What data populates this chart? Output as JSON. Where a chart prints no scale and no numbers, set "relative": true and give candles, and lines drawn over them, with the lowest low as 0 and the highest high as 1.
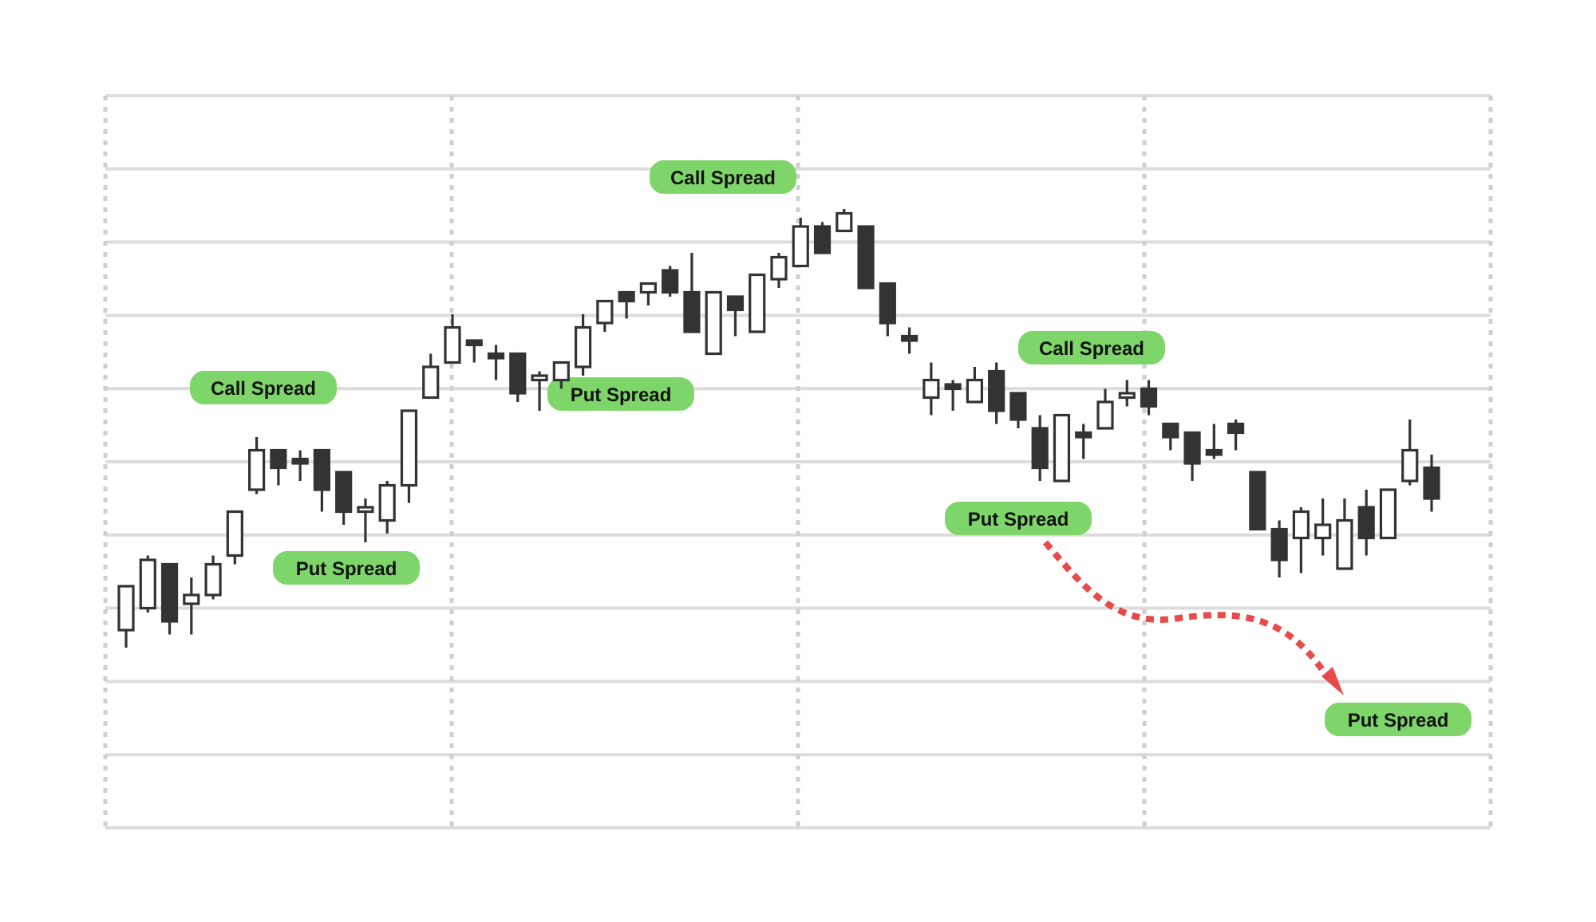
{
  "chart_data": {
    "type": "candlestick",
    "relative": true,
    "grid": true,
    "categories": [
      null,
      null,
      null,
      null,
      null,
      null,
      null,
      null,
      null,
      null,
      null,
      null,
      null,
      null,
      null,
      null,
      null,
      null,
      null,
      null,
      null,
      null,
      null,
      null,
      null,
      null,
      null,
      null,
      null,
      null,
      null,
      null,
      null,
      null,
      null,
      null,
      null,
      null,
      null,
      null,
      null,
      null,
      null,
      null,
      null,
      null,
      null,
      null,
      null,
      null,
      null,
      null,
      null,
      null,
      null,
      null,
      null,
      null,
      null,
      null,
      null
    ],
    "ohlc": [
      [
        0.04,
        0.14,
        0,
        0.14
      ],
      [
        0.09,
        0.21,
        0.08,
        0.2
      ],
      [
        0.19,
        0.19,
        0.03,
        0.06
      ],
      [
        0.1,
        0.16,
        0.03,
        0.12
      ],
      [
        0.12,
        0.21,
        0.11,
        0.19
      ],
      [
        0.21,
        0.31,
        0.19,
        0.31
      ],
      [
        0.36,
        0.48,
        0.35,
        0.45
      ],
      [
        0.45,
        0.45,
        0.37,
        0.41
      ],
      [
        0.43,
        0.45,
        0.38,
        0.42
      ],
      [
        0.45,
        0.45,
        0.31,
        0.36
      ],
      [
        0.4,
        0.4,
        0.28,
        0.31
      ],
      [
        0.31,
        0.34,
        0.24,
        0.32
      ],
      [
        0.29,
        0.38,
        0.26,
        0.37
      ],
      [
        0.37,
        0.54,
        0.33,
        0.54
      ],
      [
        0.57,
        0.67,
        0.57,
        0.64
      ],
      [
        0.65,
        0.76,
        0.65,
        0.73
      ],
      [
        0.7,
        0.7,
        0.65,
        0.69
      ],
      [
        0.67,
        0.69,
        0.61,
        0.66
      ],
      [
        0.67,
        0.67,
        0.56,
        0.58
      ],
      [
        0.61,
        0.63,
        0.54,
        0.62
      ],
      [
        0.61,
        0.65,
        0.59,
        0.65
      ],
      [
        0.64,
        0.76,
        0.62,
        0.73
      ],
      [
        0.74,
        0.79,
        0.72,
        0.79
      ],
      [
        0.81,
        0.81,
        0.75,
        0.79
      ],
      [
        0.81,
        0.83,
        0.78,
        0.83
      ],
      [
        0.86,
        0.87,
        0.8,
        0.81
      ],
      [
        0.81,
        0.9,
        0.72,
        0.72
      ],
      [
        0.67,
        0.81,
        0.67,
        0.81
      ],
      [
        0.8,
        0.8,
        0.71,
        0.77
      ],
      [
        0.72,
        0.85,
        0.72,
        0.85
      ],
      [
        0.84,
        0.9,
        0.82,
        0.89
      ],
      [
        0.87,
        0.98,
        0.87,
        0.96
      ],
      [
        0.96,
        0.97,
        0.9,
        0.9
      ],
      [
        0.95,
        1,
        0.95,
        0.99
      ],
      [
        0.96,
        0.96,
        0.82,
        0.82
      ],
      [
        0.83,
        0.83,
        0.71,
        0.74
      ],
      [
        0.71,
        0.73,
        0.67,
        0.7
      ],
      [
        0.57,
        0.65,
        0.53,
        0.61
      ],
      [
        0.6,
        0.61,
        0.54,
        0.59
      ],
      [
        0.56,
        0.64,
        0.56,
        0.61
      ],
      [
        0.63,
        0.65,
        0.51,
        0.54
      ],
      [
        0.58,
        0.58,
        0.5,
        0.52
      ],
      [
        0.5,
        0.53,
        0.38,
        0.41
      ],
      [
        0.38,
        0.53,
        0.38,
        0.53
      ],
      [
        0.49,
        0.51,
        0.43,
        0.48
      ],
      [
        0.5,
        0.59,
        0.5,
        0.56
      ],
      [
        0.57,
        0.61,
        0.55,
        0.58
      ],
      [
        0.59,
        0.61,
        0.53,
        0.55
      ],
      [
        0.51,
        0.51,
        0.45,
        0.48
      ],
      [
        0.49,
        0.49,
        0.38,
        0.42
      ],
      [
        0.45,
        0.51,
        0.43,
        0.44
      ],
      [
        0.51,
        0.52,
        0.45,
        0.49
      ],
      [
        0.4,
        0.4,
        0.27,
        0.27
      ],
      [
        0.27,
        0.29,
        0.16,
        0.2
      ],
      [
        0.25,
        0.32,
        0.17,
        0.31
      ],
      [
        0.25,
        0.34,
        0.21,
        0.28
      ],
      [
        0.18,
        0.34,
        0.18,
        0.29
      ],
      [
        0.32,
        0.36,
        0.21,
        0.25
      ],
      [
        0.25,
        0.36,
        0.25,
        0.36
      ],
      [
        0.38,
        0.52,
        0.37,
        0.45
      ],
      [
        0.41,
        0.44,
        0.31,
        0.34
      ]
    ],
    "annotations": [
      "Call Spread",
      "Put Spread",
      "Put Spread",
      "Call Spread",
      "Call Spread",
      "Put Spread",
      "Put Spread"
    ]
  }
}
